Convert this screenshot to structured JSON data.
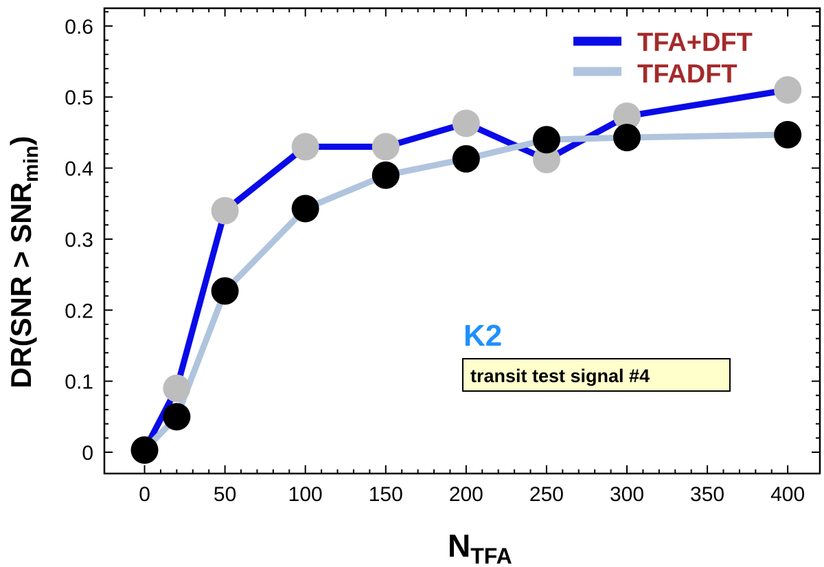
{
  "chart_data": {
    "type": "line",
    "x": [
      0,
      20,
      50,
      100,
      150,
      200,
      250,
      300,
      400
    ],
    "series": [
      {
        "name": "TFA+DFT",
        "values": [
          0.003,
          0.09,
          0.34,
          0.43,
          0.43,
          0.463,
          0.412,
          0.473,
          0.51
        ],
        "line_color": "#0a0ae8",
        "marker_color": "#bdbdbd"
      },
      {
        "name": "TFADFT",
        "values": [
          0.003,
          0.05,
          0.227,
          0.343,
          0.39,
          0.413,
          0.44,
          0.443,
          0.447
        ],
        "line_color": "#b0c4de",
        "marker_color": "#000000"
      }
    ],
    "xticks": [
      0,
      50,
      100,
      150,
      200,
      250,
      300,
      350,
      400
    ],
    "yticks": [
      0,
      0.1,
      0.2,
      0.3,
      0.4,
      0.5,
      0.6
    ],
    "xlim": [
      -25,
      420
    ],
    "ylim": [
      -0.03,
      0.625
    ],
    "xlabel": {
      "main": "N",
      "sub": "TFA"
    },
    "ylabel": {
      "main": "DR(SNR > SNR",
      "sub": "min",
      "close": ")"
    },
    "legend_position": "top-right",
    "legend_text_color": "#a52a2a",
    "annotations": {
      "dataset": {
        "text": "K2",
        "color": "#1e90ff"
      },
      "signal": {
        "text": "transit test signal #4",
        "box_fill": "#ffffcc"
      }
    }
  }
}
